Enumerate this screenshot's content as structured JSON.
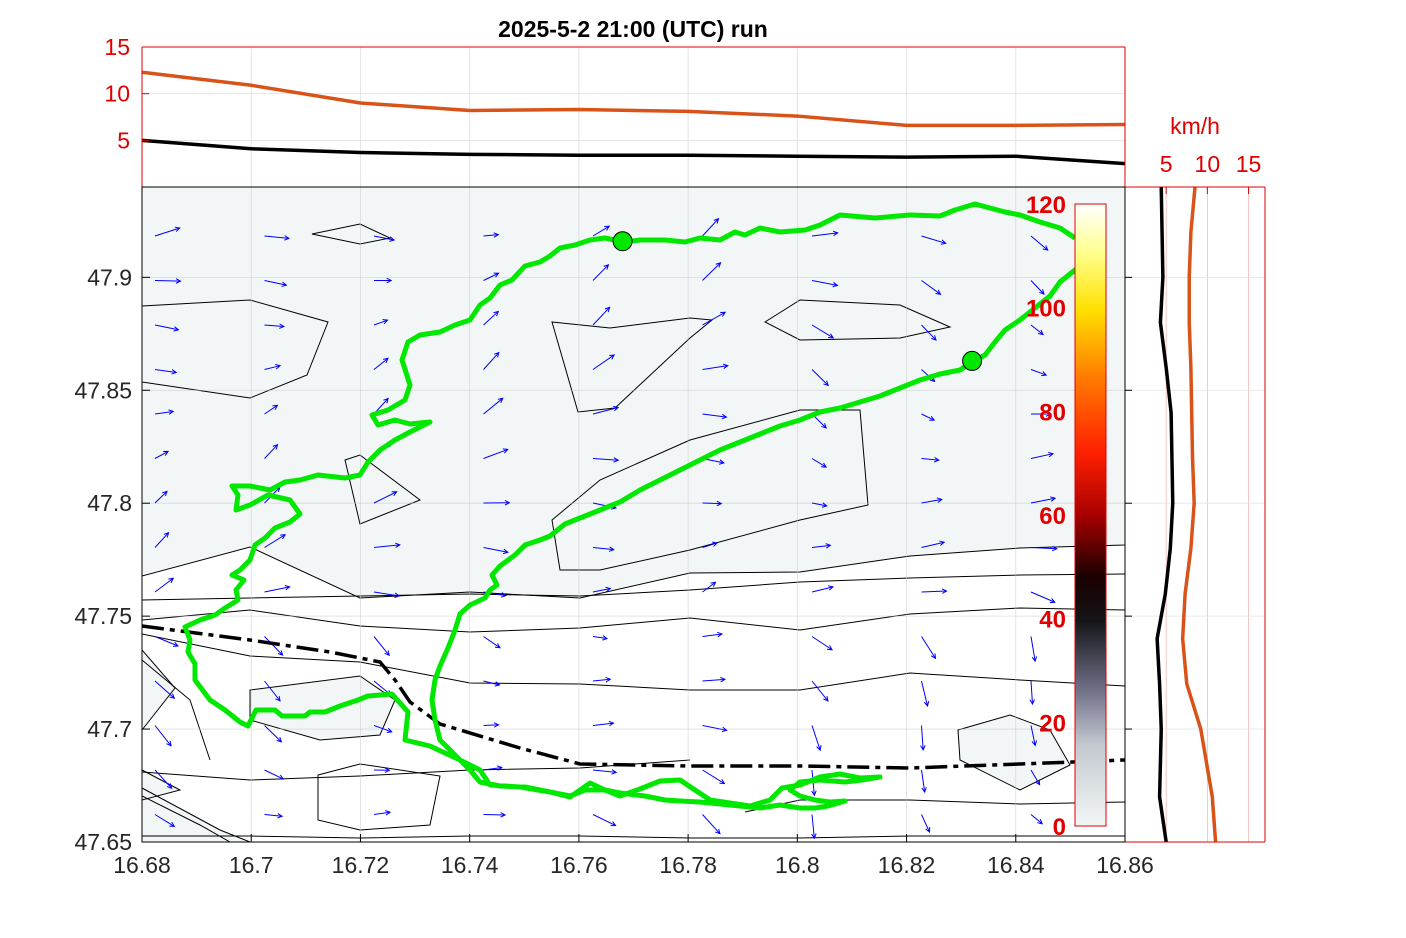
{
  "title": "2025-5-2  21:00 (UTC) run",
  "colors": {
    "route": "#00e800",
    "arrows": "#0000ff",
    "orange": "#d95319",
    "axis_red": "#e00000",
    "fill_light": "#f2f6f6"
  },
  "chart_data": [
    {
      "name": "top-profile",
      "type": "line",
      "x": [
        16.68,
        16.7,
        16.72,
        16.74,
        16.76,
        16.78,
        16.8,
        16.82,
        16.84,
        16.86
      ],
      "xlim": [
        16.68,
        16.86
      ],
      "ylim": [
        0,
        15
      ],
      "ytick_labels": [
        "5",
        "10",
        "15"
      ],
      "series": [
        {
          "color": "#d95319",
          "values": [
            12.3,
            10.9,
            9.0,
            8.2,
            8.3,
            8.1,
            7.6,
            6.6,
            6.6,
            6.7
          ]
        },
        {
          "color": "#000000",
          "values": [
            5.0,
            4.1,
            3.7,
            3.5,
            3.4,
            3.4,
            3.3,
            3.2,
            3.3,
            2.5
          ]
        }
      ],
      "grid": true
    },
    {
      "name": "map",
      "type": "contour",
      "xlim": [
        16.68,
        16.86
      ],
      "ylim": [
        47.65,
        47.94
      ],
      "xtick_labels": [
        "16.68",
        "16.7",
        "16.72",
        "16.74",
        "16.76",
        "16.78",
        "16.8",
        "16.82",
        "16.84",
        "16.86"
      ],
      "ytick_labels": [
        "47.65",
        "47.7",
        "47.75",
        "47.8",
        "47.85",
        "47.9"
      ],
      "route_points": [
        {
          "lon": 16.768,
          "lat": 47.916
        },
        {
          "lon": 16.832,
          "lat": 47.863
        }
      ],
      "colorbar": {
        "range": [
          0,
          120
        ],
        "tick_labels": [
          "0",
          "20",
          "40",
          "60",
          "80",
          "100",
          "120"
        ]
      },
      "grid": true
    },
    {
      "name": "side-profile",
      "type": "line",
      "xlabel": "km/h",
      "xlim": [
        0,
        17
      ],
      "xtick_labels": [
        "5",
        "10",
        "15"
      ],
      "y": [
        47.65,
        47.67,
        47.7,
        47.72,
        47.74,
        47.76,
        47.78,
        47.8,
        47.82,
        47.84,
        47.86,
        47.88,
        47.9,
        47.92,
        47.94
      ],
      "series": [
        {
          "color": "#d95319",
          "values": [
            11.0,
            10.6,
            9.2,
            7.5,
            7.0,
            7.3,
            8.0,
            8.4,
            8.2,
            8.1,
            8.0,
            7.8,
            7.8,
            8.0,
            8.5
          ]
        },
        {
          "color": "#000000",
          "values": [
            5.0,
            4.2,
            4.4,
            4.2,
            3.9,
            4.9,
            5.5,
            5.8,
            5.7,
            5.6,
            5.0,
            4.3,
            4.6,
            4.5,
            4.4
          ]
        }
      ],
      "grid": true
    }
  ]
}
